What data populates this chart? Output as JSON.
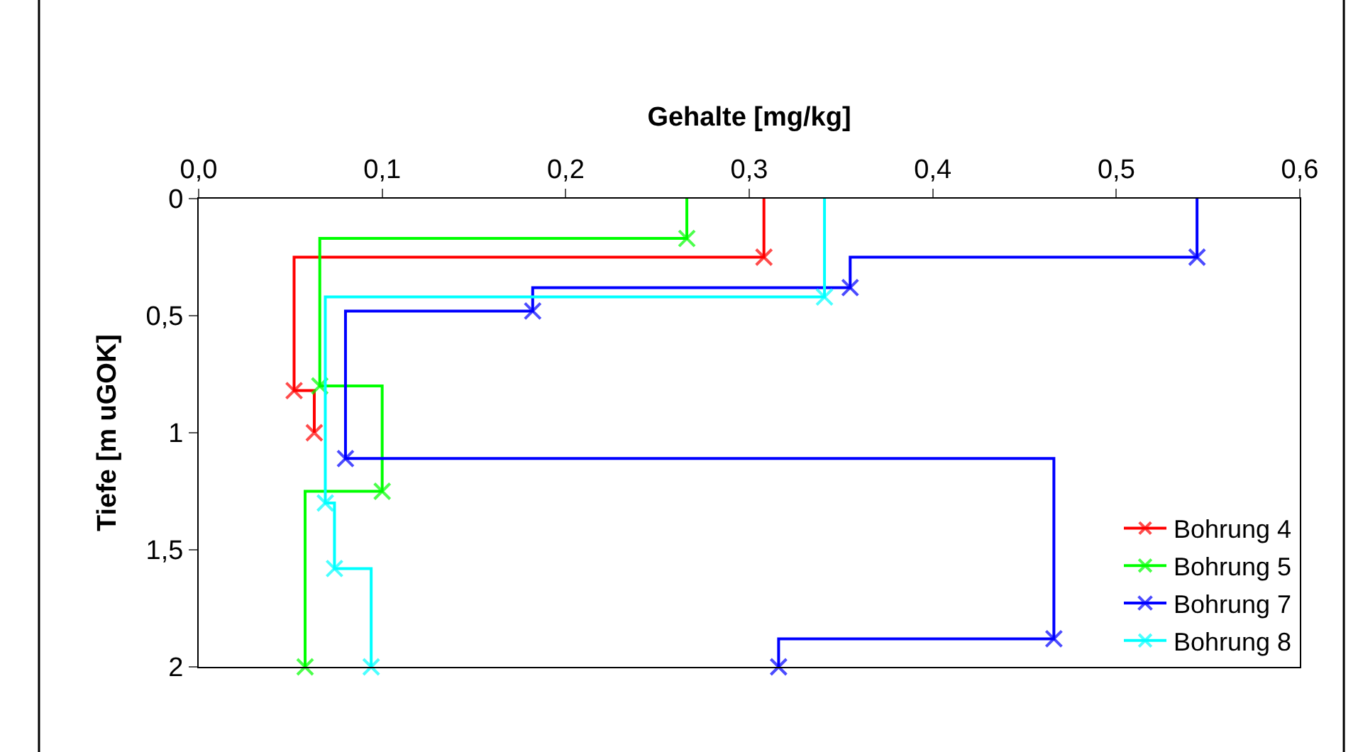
{
  "chart_data": {
    "type": "step",
    "xlabel": "Gehalte [mg/kg]",
    "ylabel": "Tiefe [m uGOK]",
    "xlim": [
      0,
      0.6
    ],
    "xticks": [
      {
        "value": 0,
        "label": "0,0"
      },
      {
        "value": 0.1,
        "label": "0,1"
      },
      {
        "value": 0.2,
        "label": "0,2"
      },
      {
        "value": 0.3,
        "label": "0,3"
      },
      {
        "value": 0.4,
        "label": "0,4"
      },
      {
        "value": 0.5,
        "label": "0,5"
      },
      {
        "value": 0.6,
        "label": "0,6"
      }
    ],
    "ylim": [
      2,
      0
    ],
    "yticks": [
      0,
      {
        "value": 0.5,
        "label": "0,5"
      },
      1,
      {
        "value": 1.5,
        "label": "1,5"
      },
      2
    ],
    "grid": false,
    "legend": "bottom right",
    "marker": "cross",
    "line_style": "solid",
    "series": [
      {
        "name": "Bohrung 4",
        "color": "#ff0000",
        "x": [
          0.308,
          0.308,
          0.052,
          0.063
        ],
        "values": [
          0,
          0.25,
          0.82,
          1.0
        ]
      },
      {
        "name": "Bohrung 5",
        "color": "#00ff00",
        "x": [
          0.266,
          0.266,
          0.066,
          0.1,
          0.058
        ],
        "values": [
          0,
          0.17,
          0.8,
          1.25,
          2.0
        ]
      },
      {
        "name": "Bohrung 7",
        "color": "#0000ff",
        "x": [
          0.544,
          0.544,
          0.355,
          0.182,
          0.08,
          0.466,
          0.316
        ],
        "values": [
          0,
          0.25,
          0.38,
          0.48,
          1.11,
          1.88,
          2.0
        ]
      },
      {
        "name": "Bohrung 8",
        "color": "#00ffff",
        "x": [
          0.341,
          0.341,
          0.069,
          0.074,
          0.094
        ],
        "values": [
          0,
          0.42,
          1.3,
          1.58,
          2.0
        ]
      }
    ]
  }
}
